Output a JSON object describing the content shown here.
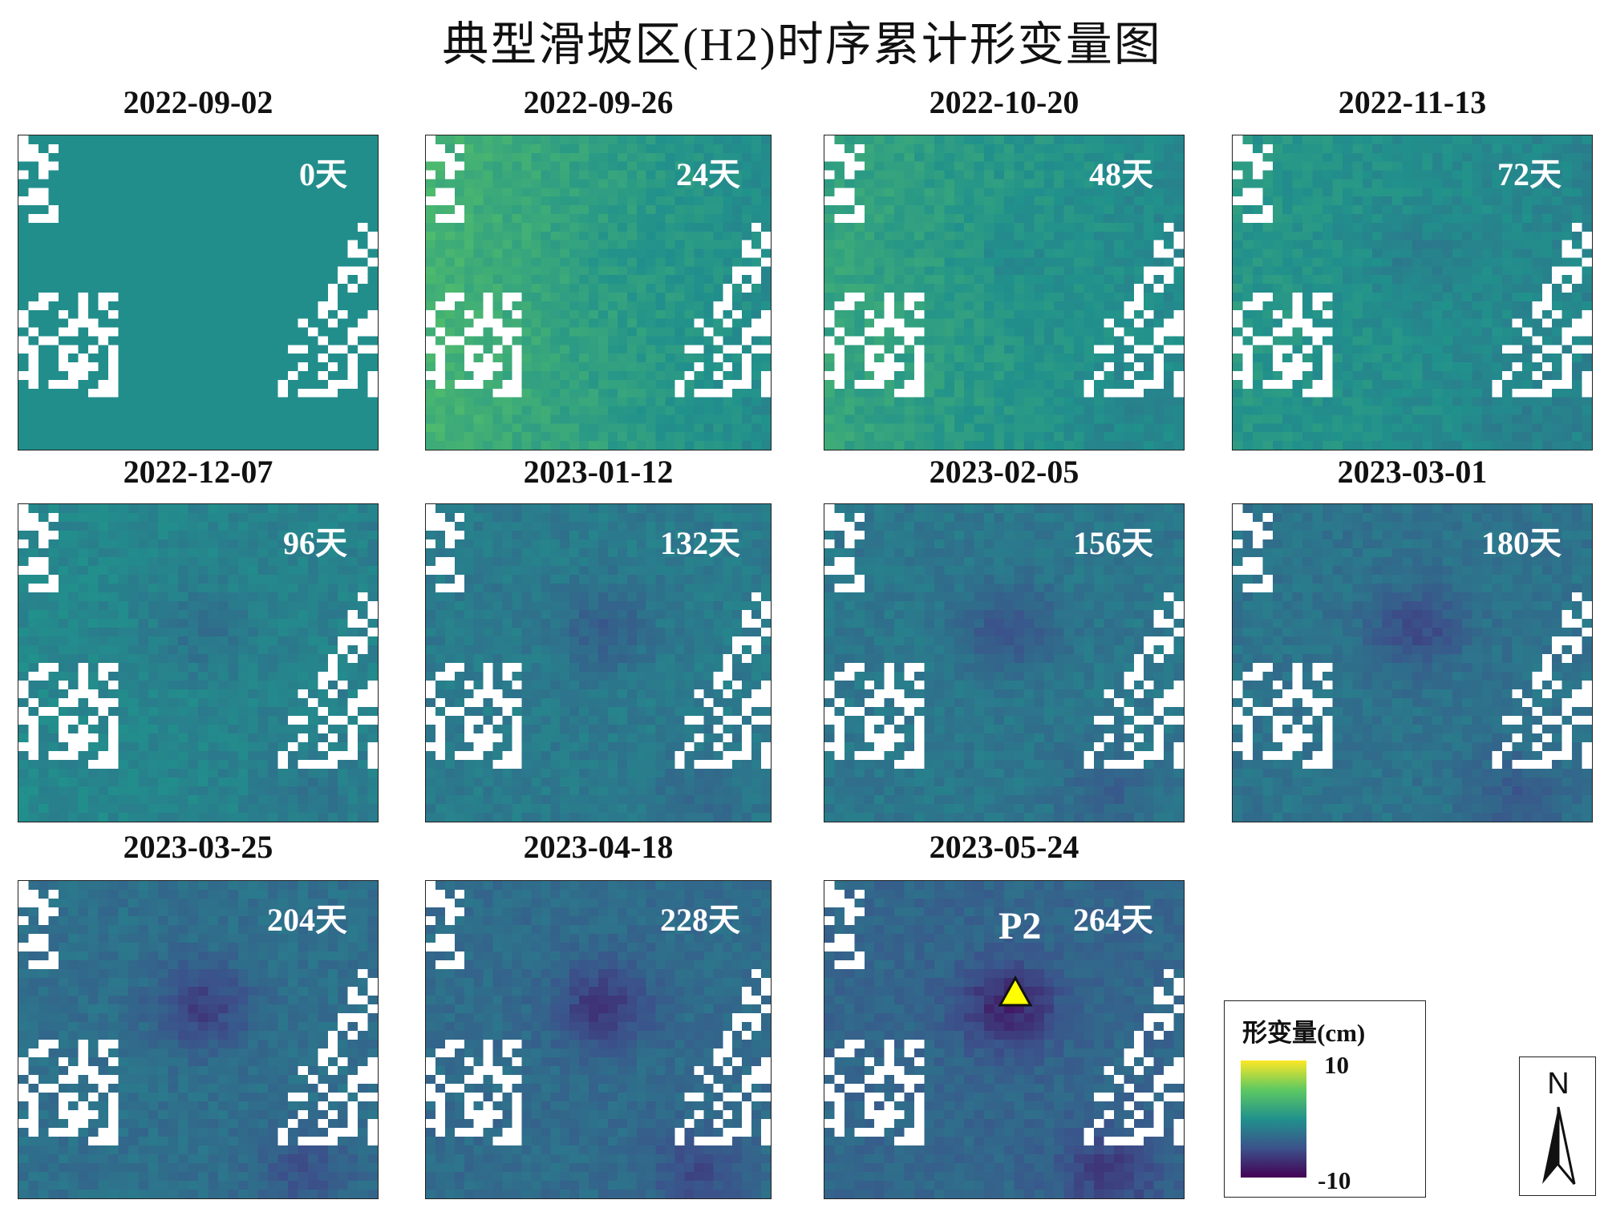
{
  "title": "典型滑坡区(H2)时序累计形变量图",
  "panels": [
    {
      "date": "2022-09-02",
      "days": "0天",
      "stage": 0.0
    },
    {
      "date": "2022-09-26",
      "days": "24天",
      "stage": 0.09
    },
    {
      "date": "2022-10-20",
      "days": "48天",
      "stage": 0.18
    },
    {
      "date": "2022-11-13",
      "days": "72天",
      "stage": 0.27
    },
    {
      "date": "2022-12-07",
      "days": "96天",
      "stage": 0.36
    },
    {
      "date": "2023-01-12",
      "days": "132天",
      "stage": 0.5
    },
    {
      "date": "2023-02-05",
      "days": "156天",
      "stage": 0.59
    },
    {
      "date": "2023-03-01",
      "days": "180天",
      "stage": 0.68
    },
    {
      "date": "2023-03-25",
      "days": "204天",
      "stage": 0.77
    },
    {
      "date": "2023-04-18",
      "days": "228天",
      "stage": 0.86
    },
    {
      "date": "2023-05-24",
      "days": "264天",
      "stage": 1.0
    }
  ],
  "marker": {
    "label": "P2",
    "color": "#ffff00"
  },
  "legend": {
    "title": "形变量(cm)",
    "max": "10",
    "min": "-10",
    "colors": [
      "#fde725",
      "#5ec962",
      "#21918c",
      "#3b528b",
      "#440154"
    ]
  },
  "north_arrow": {
    "letter": "N"
  }
}
